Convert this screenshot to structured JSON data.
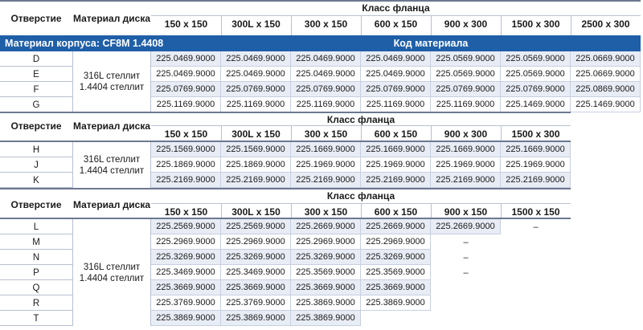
{
  "col_headers": {
    "opening": "Отверстие",
    "disc_material": "Материал диска",
    "flange_class": "Класс фланца"
  },
  "body_bar": {
    "label": "Материал корпуса: CF8M 1.4408",
    "code_label": "Код материала"
  },
  "disc_material_value": "316L стеллит 1.4404 стеллит",
  "tables": [
    {
      "classes": [
        "150 x 150",
        "300L x 150",
        "300 x 150",
        "600 x 150",
        "900 x 300",
        "1500 x 300",
        "2500 x 300"
      ],
      "rows": [
        {
          "opening": "D",
          "codes": [
            "225.0469.9000",
            "225.0469.9000",
            "225.0469.9000",
            "225.0469.9000",
            "225.0569.9000",
            "225.0569.9000",
            "225.0669.9000"
          ]
        },
        {
          "opening": "E",
          "codes": [
            "225.0469.9000",
            "225.0469.9000",
            "225.0469.9000",
            "225.0469.9000",
            "225.0569.9000",
            "225.0569.9000",
            "225.0669.9000"
          ]
        },
        {
          "opening": "F",
          "codes": [
            "225.0769.9000",
            "225.0769.9000",
            "225.0769.9000",
            "225.0769.9000",
            "225.0769.9000",
            "225.0769.9000",
            "225.0869.9000"
          ]
        },
        {
          "opening": "G",
          "codes": [
            "225.1169.9000",
            "225.1169.9000",
            "225.1169.9000",
            "225.1169.9000",
            "225.1169.9000",
            "225.1469.9000",
            "225.1469.9000"
          ]
        }
      ]
    },
    {
      "classes": [
        "150 x 150",
        "300L x 150",
        "300 x 150",
        "600 x 150",
        "900 x 300",
        "1500 x 300"
      ],
      "rows": [
        {
          "opening": "H",
          "codes": [
            "225.1569.9000",
            "225.1569.9000",
            "225.1669.9000",
            "225.1669.9000",
            "225.1669.9000",
            "225.1669.9000"
          ]
        },
        {
          "opening": "J",
          "codes": [
            "225.1869.9000",
            "225.1869.9000",
            "225.1969.9000",
            "225.1969.9000",
            "225.1969.9000",
            "225.1969.9000"
          ]
        },
        {
          "opening": "K",
          "codes": [
            "225.2169.9000",
            "225.2169.9000",
            "225.2169.9000",
            "225.2169.9000",
            "225.2169.9000",
            "225.2169.9000"
          ]
        }
      ]
    },
    {
      "classes": [
        "150 x 150",
        "300L x 150",
        "300 x 150",
        "600 x 150",
        "900 x 150",
        "1500 x 150"
      ],
      "rows": [
        {
          "opening": "L",
          "codes": [
            "225.2569.9000",
            "225.2569.9000",
            "225.2669.9000",
            "225.2669.9000",
            "225.2669.9000",
            "–"
          ]
        },
        {
          "opening": "M",
          "codes": [
            "225.2969.9000",
            "225.2969.9000",
            "225.2969.9000",
            "225.2969.9000",
            "–"
          ]
        },
        {
          "opening": "N",
          "codes": [
            "225.3269.9000",
            "225.3269.9000",
            "225.3269.9000",
            "225.3269.9000",
            "–"
          ]
        },
        {
          "opening": "P",
          "codes": [
            "225.3469.9000",
            "225.3469.9000",
            "225.3569.9000",
            "225.3569.9000",
            "–"
          ]
        },
        {
          "opening": "Q",
          "codes": [
            "225.3669.9000",
            "225.3669.9000",
            "225.3669.9000",
            "225.3669.9000"
          ]
        },
        {
          "opening": "R",
          "codes": [
            "225.3769.9000",
            "225.3769.9000",
            "225.3869.9000",
            "225.3869.9000"
          ]
        },
        {
          "opening": "T",
          "codes": [
            "225.3869.9000",
            "225.3869.9000",
            "225.3869.9000"
          ]
        }
      ]
    }
  ]
}
